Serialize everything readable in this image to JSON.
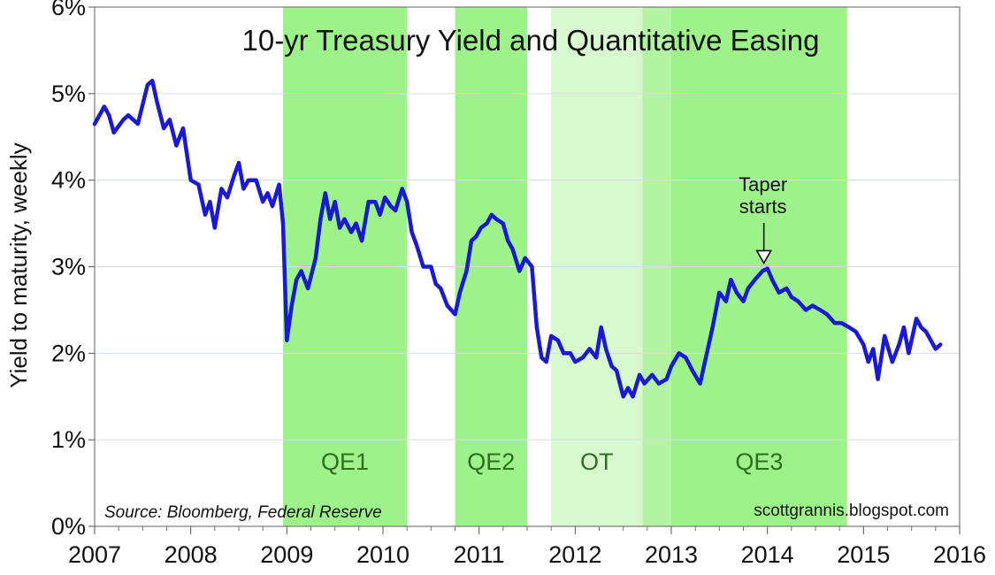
{
  "chart_data": {
    "type": "line",
    "title": "10-yr Treasury Yield and Quantitative Easing",
    "ylabel": "Yield to maturity, weekly",
    "xlabel": "",
    "xlim": [
      2007,
      2016
    ],
    "ylim": [
      0,
      6
    ],
    "x_ticks": [
      "2007",
      "2008",
      "2009",
      "2010",
      "2011",
      "2012",
      "2013",
      "2014",
      "2015",
      "2016"
    ],
    "y_ticks": [
      "0%",
      "1%",
      "2%",
      "3%",
      "4%",
      "5%",
      "6%"
    ],
    "grid": "horizontal",
    "series": [
      {
        "color": "#1a1ad6",
        "x": [
          2007.0,
          2007.1,
          2007.15,
          2007.2,
          2007.3,
          2007.35,
          2007.45,
          2007.55,
          2007.6,
          2007.65,
          2007.72,
          2007.78,
          2007.85,
          2007.92,
          2008.0,
          2008.08,
          2008.15,
          2008.2,
          2008.25,
          2008.32,
          2008.38,
          2008.45,
          2008.5,
          2008.55,
          2008.6,
          2008.68,
          2008.75,
          2008.8,
          2008.85,
          2008.92,
          2008.96,
          2009.0,
          2009.05,
          2009.1,
          2009.15,
          2009.22,
          2009.3,
          2009.35,
          2009.4,
          2009.45,
          2009.5,
          2009.55,
          2009.6,
          2009.67,
          2009.72,
          2009.78,
          2009.85,
          2009.92,
          2009.97,
          2010.02,
          2010.08,
          2010.13,
          2010.2,
          2010.25,
          2010.3,
          2010.35,
          2010.42,
          2010.5,
          2010.55,
          2010.6,
          2010.67,
          2010.75,
          2010.8,
          2010.87,
          2010.92,
          2010.97,
          2011.02,
          2011.08,
          2011.13,
          2011.18,
          2011.25,
          2011.3,
          2011.35,
          2011.42,
          2011.48,
          2011.55,
          2011.6,
          2011.65,
          2011.7,
          2011.75,
          2011.82,
          2011.88,
          2011.95,
          2012.0,
          2012.08,
          2012.15,
          2012.22,
          2012.27,
          2012.32,
          2012.38,
          2012.43,
          2012.5,
          2012.55,
          2012.6,
          2012.67,
          2012.72,
          2012.8,
          2012.87,
          2012.95,
          2013.0,
          2013.08,
          2013.15,
          2013.22,
          2013.3,
          2013.37,
          2013.43,
          2013.5,
          2013.57,
          2013.62,
          2013.68,
          2013.75,
          2013.8,
          2013.87,
          2013.95,
          2014.0,
          2014.05,
          2014.12,
          2014.2,
          2014.25,
          2014.32,
          2014.4,
          2014.47,
          2014.55,
          2014.62,
          2014.7,
          2014.77,
          2014.85,
          2014.92,
          2015.0,
          2015.05,
          2015.1,
          2015.15,
          2015.22,
          2015.3,
          2015.37,
          2015.42,
          2015.47,
          2015.55,
          2015.6,
          2015.65,
          2015.7,
          2015.75,
          2015.8
        ],
        "y": [
          4.65,
          4.85,
          4.75,
          4.55,
          4.7,
          4.75,
          4.65,
          5.1,
          5.15,
          4.9,
          4.6,
          4.7,
          4.4,
          4.6,
          4.0,
          3.95,
          3.6,
          3.75,
          3.45,
          3.9,
          3.8,
          4.05,
          4.2,
          3.9,
          4.0,
          4.0,
          3.75,
          3.85,
          3.7,
          3.95,
          3.5,
          2.15,
          2.55,
          2.85,
          2.95,
          2.75,
          3.1,
          3.55,
          3.85,
          3.55,
          3.75,
          3.45,
          3.55,
          3.4,
          3.5,
          3.3,
          3.75,
          3.75,
          3.6,
          3.8,
          3.7,
          3.65,
          3.9,
          3.75,
          3.4,
          3.25,
          3.0,
          3.0,
          2.8,
          2.75,
          2.55,
          2.45,
          2.7,
          2.95,
          3.3,
          3.35,
          3.45,
          3.5,
          3.6,
          3.55,
          3.5,
          3.3,
          3.2,
          2.95,
          3.1,
          3.0,
          2.3,
          1.95,
          1.9,
          2.2,
          2.15,
          2.0,
          2.0,
          1.9,
          1.95,
          2.05,
          1.95,
          2.3,
          2.05,
          1.85,
          1.8,
          1.5,
          1.6,
          1.5,
          1.75,
          1.65,
          1.75,
          1.65,
          1.7,
          1.85,
          2.0,
          1.95,
          1.8,
          1.65,
          2.0,
          2.3,
          2.7,
          2.6,
          2.85,
          2.7,
          2.6,
          2.75,
          2.85,
          2.95,
          2.98,
          2.85,
          2.7,
          2.75,
          2.65,
          2.6,
          2.5,
          2.55,
          2.5,
          2.45,
          2.35,
          2.35,
          2.3,
          2.25,
          2.1,
          1.9,
          2.05,
          1.7,
          2.2,
          1.9,
          2.1,
          2.3,
          2.0,
          2.4,
          2.3,
          2.25,
          2.15,
          2.05,
          2.1
        ]
      }
    ],
    "bands": [
      {
        "label": "QE1",
        "start": 2008.96,
        "end": 2010.25,
        "color": "#9ef28a"
      },
      {
        "label": "QE2",
        "start": 2010.75,
        "end": 2011.5,
        "color": "#9ef28a"
      },
      {
        "label": "OT",
        "start": 2011.75,
        "end": 2012.7,
        "color": "#d8f8cf"
      },
      {
        "label": "",
        "start": 2012.7,
        "end": 2013.0,
        "color": "#b4f3a3"
      },
      {
        "label": "QE3",
        "start": 2013.0,
        "end": 2014.83,
        "color": "#9ef28a"
      }
    ],
    "annotation": {
      "lines": [
        "Taper",
        "starts"
      ],
      "x": 2014.0,
      "y": 2.98
    },
    "source": "Source: Bloomberg, Federal Reserve",
    "credit": "scottgrannis.blogspot.com"
  }
}
